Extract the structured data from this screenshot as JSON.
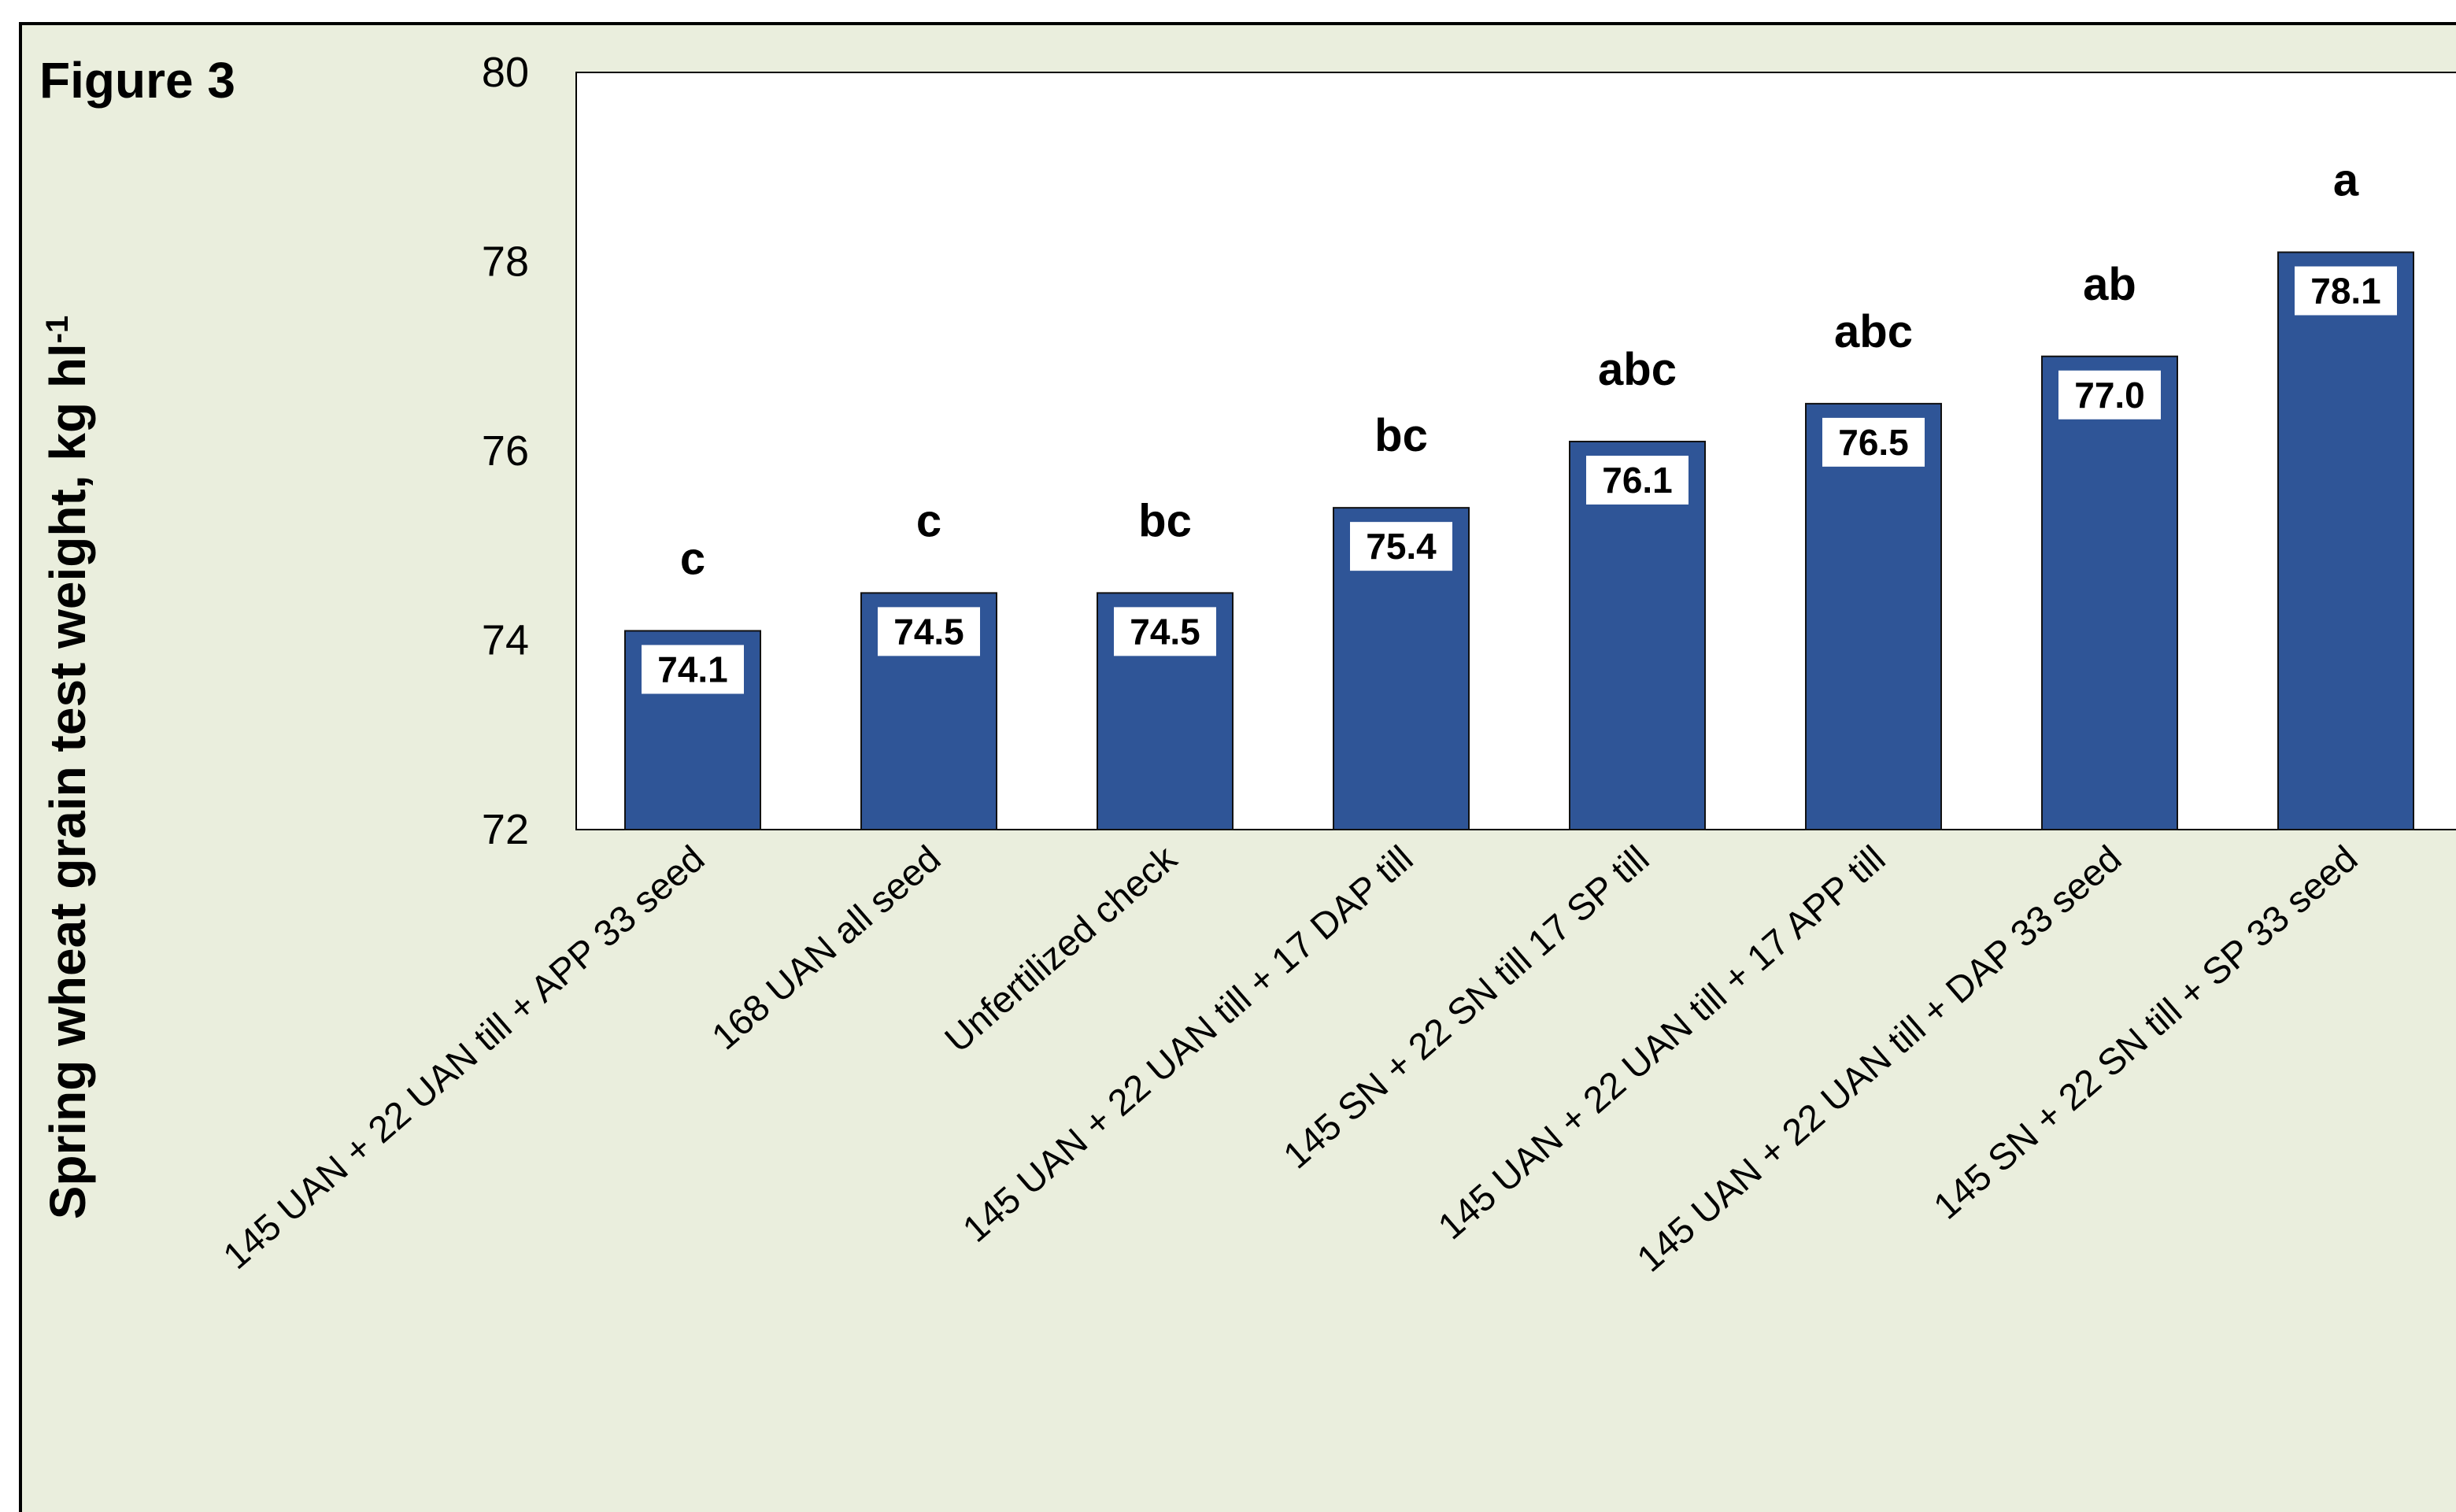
{
  "figure_label": "Figure 3",
  "colors": {
    "panel": "#eaeedd",
    "bar": "#2f5597",
    "bar_edge": "#111111",
    "plot_bg": "#ffffff"
  },
  "chart_data": {
    "type": "bar",
    "title": "",
    "xlabel": "",
    "ylabel": "Spring wheat grain test weight, kg hl",
    "ylabel_sup": "-1",
    "ylim": [
      72,
      80
    ],
    "yticks": [
      72,
      74,
      76,
      78,
      80
    ],
    "grid": false,
    "categories": [
      "145 UAN + 22 UAN till + APP 33 seed",
      "168 UAN all seed",
      "Unfertilized check",
      "145 UAN + 22 UAN till + 17 DAP till",
      "145 SN + 22 SN till  17 SP till",
      "145 UAN + 22 UAN till + 17 APP till",
      "145 UAN + 22 UAN till + DAP 33 seed",
      "145 SN + 22 SN till + SP 33 seed"
    ],
    "values": [
      74.1,
      74.5,
      74.5,
      75.4,
      76.1,
      76.5,
      77.0,
      78.1
    ],
    "value_labels": [
      "74.1",
      "74.5",
      "74.5",
      "75.4",
      "76.1",
      "76.5",
      "77.0",
      "78.1"
    ],
    "letters": [
      "c",
      "c",
      "bc",
      "bc",
      "abc",
      "abc",
      "ab",
      "a"
    ]
  }
}
